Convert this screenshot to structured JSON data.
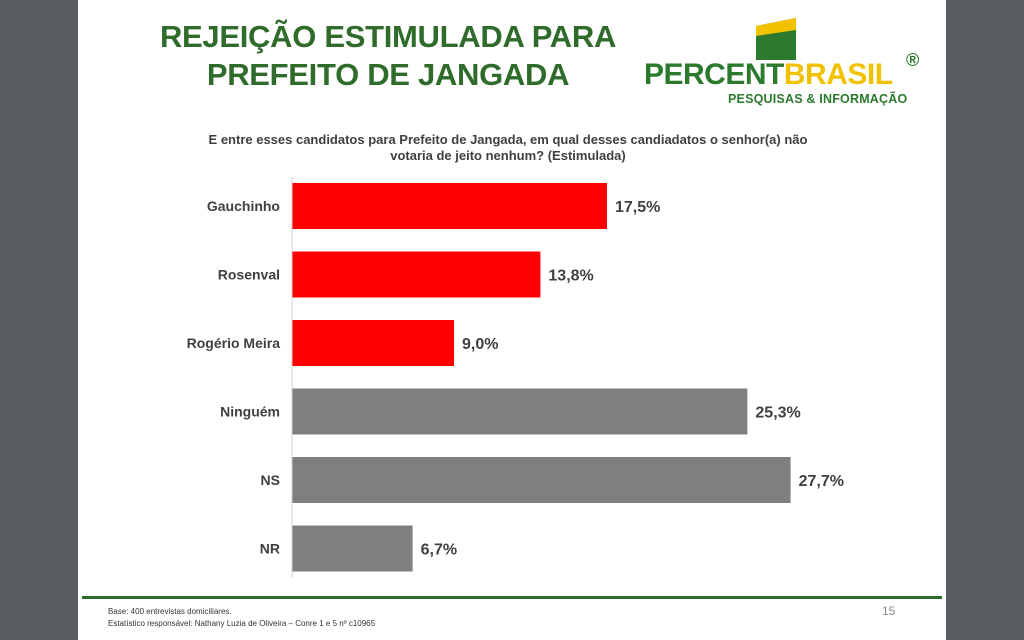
{
  "slide": {
    "title_line1": "REJEIÇÃO ESTIMULADA PARA",
    "title_line2": "PREFEITO DE JANGADA",
    "question": "E entre esses candidatos para Prefeito de Jangada, em qual desses candiadatos o senhor(a) não votaria de jeito nenhum? (Estimulada)",
    "footnote_line1": "Base: 400 entrevistas domiciliares.",
    "footnote_line2": "Estatístico responsável: Nathany Luzia de Oliveira – Conre 1 e 5 nº c10965",
    "page_number": "15"
  },
  "logo": {
    "word_part1": "PERCENT",
    "word_part2": "BRASIL",
    "registered": "®",
    "tagline": "PESQUISAS & INFORMAÇÃO"
  },
  "chart_data": {
    "type": "bar",
    "orientation": "horizontal",
    "categories": [
      "Gauchinho",
      "Rosenval",
      "Rogério Meira",
      "Ninguém",
      "NS",
      "NR"
    ],
    "values": [
      17.5,
      13.8,
      9.0,
      25.3,
      27.7,
      6.7
    ],
    "value_labels": [
      "17,5%",
      "13,8%",
      "9,0%",
      "25,3%",
      "27,7%",
      "6,7%"
    ],
    "colors": [
      "#ff0000",
      "#ff0000",
      "#ff0000",
      "#7f7f7f",
      "#7f7f7f",
      "#7f7f7f"
    ],
    "xlim": [
      0,
      30
    ],
    "grid": false,
    "legend": "none"
  }
}
